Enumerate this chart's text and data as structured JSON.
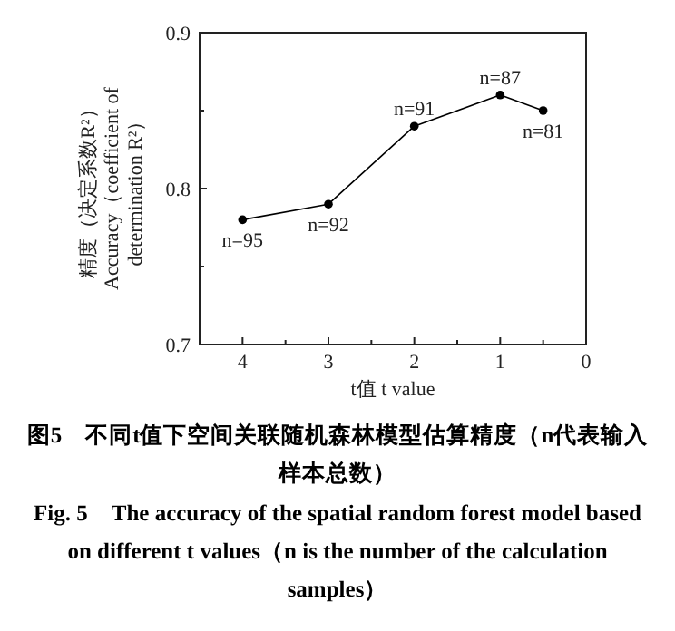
{
  "chart_data": {
    "type": "line",
    "title": "图5　不同t值下空间关联随机森林模型估算精度（n代表输入样本总数）",
    "subtitle": "Fig. 5　The accuracy of the spatial random forest model based on different t values（n is the number of the calculation samples）",
    "xlabel": "t值 t value",
    "ylabel": "精度（决定系数R²） Accuracy（coefficient of determination R²）",
    "x": [
      4,
      3,
      2,
      1,
      0.5
    ],
    "values": [
      0.78,
      0.79,
      0.84,
      0.86,
      0.85
    ],
    "annotations": [
      {
        "text": "n=95",
        "x": 4,
        "y": 0.78
      },
      {
        "text": "n=92",
        "x": 3,
        "y": 0.79
      },
      {
        "text": "n=91",
        "x": 2,
        "y": 0.84
      },
      {
        "text": "n=87",
        "x": 1,
        "y": 0.86
      },
      {
        "text": "n=81",
        "x": 0.5,
        "y": 0.85
      }
    ],
    "color": "#000000",
    "marker": "circle",
    "line_style": "solid",
    "xlim": [
      4.5,
      0
    ],
    "xticks": [
      4,
      {
        "value": 3.5,
        "label": null
      },
      3,
      {
        "value": 2.5,
        "label": null
      },
      2,
      {
        "value": 1.5,
        "label": null
      },
      1,
      {
        "value": 0.5,
        "label": null
      },
      0
    ],
    "ylim": [
      0.7,
      0.9
    ],
    "yticks": [
      0.7,
      {
        "value": 0.75,
        "label": null
      },
      0.8,
      {
        "value": 0.85,
        "label": null
      },
      0.9
    ]
  }
}
